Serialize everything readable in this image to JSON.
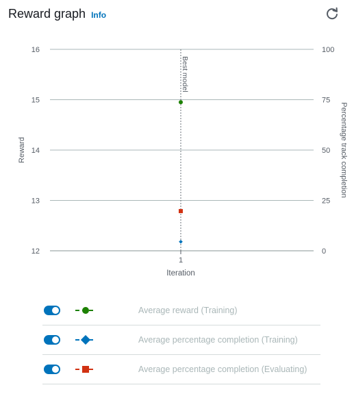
{
  "header": {
    "title": "Reward graph",
    "info_label": "Info"
  },
  "icons": {
    "refresh": "refresh-icon"
  },
  "colors": {
    "training_reward": "#1d8102",
    "training_completion": "#0073bb",
    "evaluating_completion": "#d13212",
    "toggle_on": "#0073bb",
    "grid": "#aab7b8"
  },
  "legend": [
    {
      "label": "Average reward (Training)",
      "enabled": true,
      "marker": "circle",
      "color": "#1d8102"
    },
    {
      "label": "Average percentage completion (Training)",
      "enabled": true,
      "marker": "diamond",
      "color": "#0073bb"
    },
    {
      "label": "Average percentage completion (Evaluating)",
      "enabled": true,
      "marker": "square",
      "color": "#d13212"
    }
  ],
  "chart_data": {
    "type": "scatter",
    "xlabel": "Iteration",
    "ylabel": "Reward",
    "y2label": "Percentage track completion",
    "x_ticks": [
      "1"
    ],
    "y_ticks": [
      "12",
      "13",
      "14",
      "15",
      "16"
    ],
    "y2_ticks": [
      "0",
      "25",
      "50",
      "75",
      "100"
    ],
    "ylim": [
      12,
      16
    ],
    "y2lim": [
      0,
      100
    ],
    "grid": true,
    "best_model_marker": {
      "label": "Best model",
      "x": 1
    },
    "series": [
      {
        "name": "Average reward (Training)",
        "axis": "left",
        "marker": "circle",
        "color": "#1d8102",
        "x": [
          1
        ],
        "y": [
          14.95
        ]
      },
      {
        "name": "Average percentage completion (Training)",
        "axis": "right",
        "marker": "diamond",
        "color": "#0073bb",
        "x": [
          1
        ],
        "y": [
          4.5
        ]
      },
      {
        "name": "Average percentage completion (Evaluating)",
        "axis": "right",
        "marker": "square",
        "color": "#d13212",
        "x": [
          1
        ],
        "y": [
          19.7
        ]
      }
    ]
  }
}
